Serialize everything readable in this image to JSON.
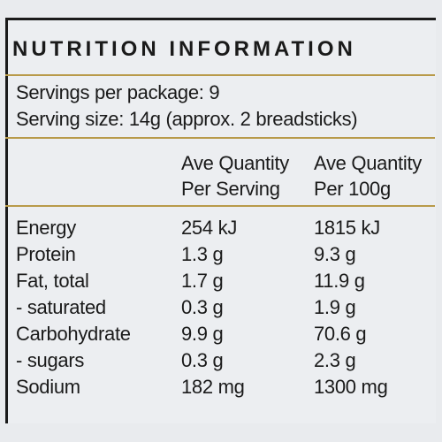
{
  "header": {
    "title": "NUTRITION INFORMATION"
  },
  "servings": {
    "per_package": "Servings per package: 9",
    "size": "Serving size: 14g (approx. 2 breadsticks)"
  },
  "table": {
    "columns": [
      [
        "Ave Quantity",
        "Per Serving"
      ],
      [
        "Ave Quantity",
        "Per 100g"
      ]
    ],
    "rows": [
      [
        "Energy",
        "254 kJ",
        "1815 kJ"
      ],
      [
        "Protein",
        "1.3 g",
        "9.3 g"
      ],
      [
        "Fat, total",
        "1.7 g",
        "11.9 g"
      ],
      [
        "- saturated",
        "0.3 g",
        "1.9 g"
      ],
      [
        "Carbohydrate",
        "9.9 g",
        "70.6 g"
      ],
      [
        "- sugars",
        "0.3 g",
        "2.3 g"
      ],
      [
        "Sodium",
        "182 mg",
        "1300 mg"
      ]
    ]
  }
}
